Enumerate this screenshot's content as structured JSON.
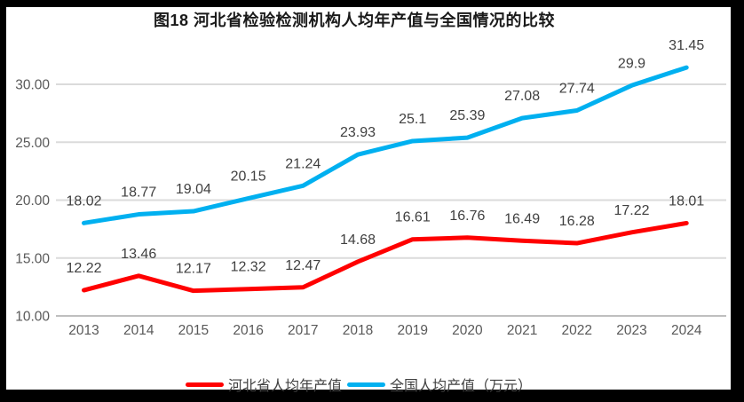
{
  "window": {
    "frame_color": "#000000",
    "background_color": "#ffffff"
  },
  "chart_data": {
    "type": "line",
    "title": "图18 河北省检验检测机构人均年产值与全国情况的比较",
    "categories": [
      "2013",
      "2014",
      "2015",
      "2016",
      "2017",
      "2018",
      "2019",
      "2020",
      "2021",
      "2022",
      "2023",
      "2024"
    ],
    "series": [
      {
        "name": "河北省人均年产值",
        "color": "#FF0000",
        "values": [
          12.22,
          13.46,
          12.17,
          12.32,
          12.47,
          14.68,
          16.61,
          16.76,
          16.49,
          16.28,
          17.22,
          18.01
        ]
      },
      {
        "name": "全国人均产值（万元）",
        "color": "#00B0F0",
        "values": [
          18.02,
          18.77,
          19.04,
          20.15,
          21.24,
          23.93,
          25.1,
          25.39,
          27.08,
          27.74,
          29.9,
          31.45
        ]
      }
    ],
    "xlabel": "",
    "ylabel": "",
    "ylim": [
      10,
      32.5
    ],
    "ytick_values": [
      10,
      15,
      20,
      25,
      30
    ],
    "ytick_labels": [
      "10.00",
      "15.00",
      "20.00",
      "25.00",
      "30.00"
    ],
    "grid": true,
    "data_labels": true,
    "legend_position": "bottom",
    "style": {
      "gridline_color": "#DBDBDB",
      "axis_line_color": "#BFBFBF",
      "tick_label_color": "#595959",
      "data_label_color": "#404040"
    }
  }
}
